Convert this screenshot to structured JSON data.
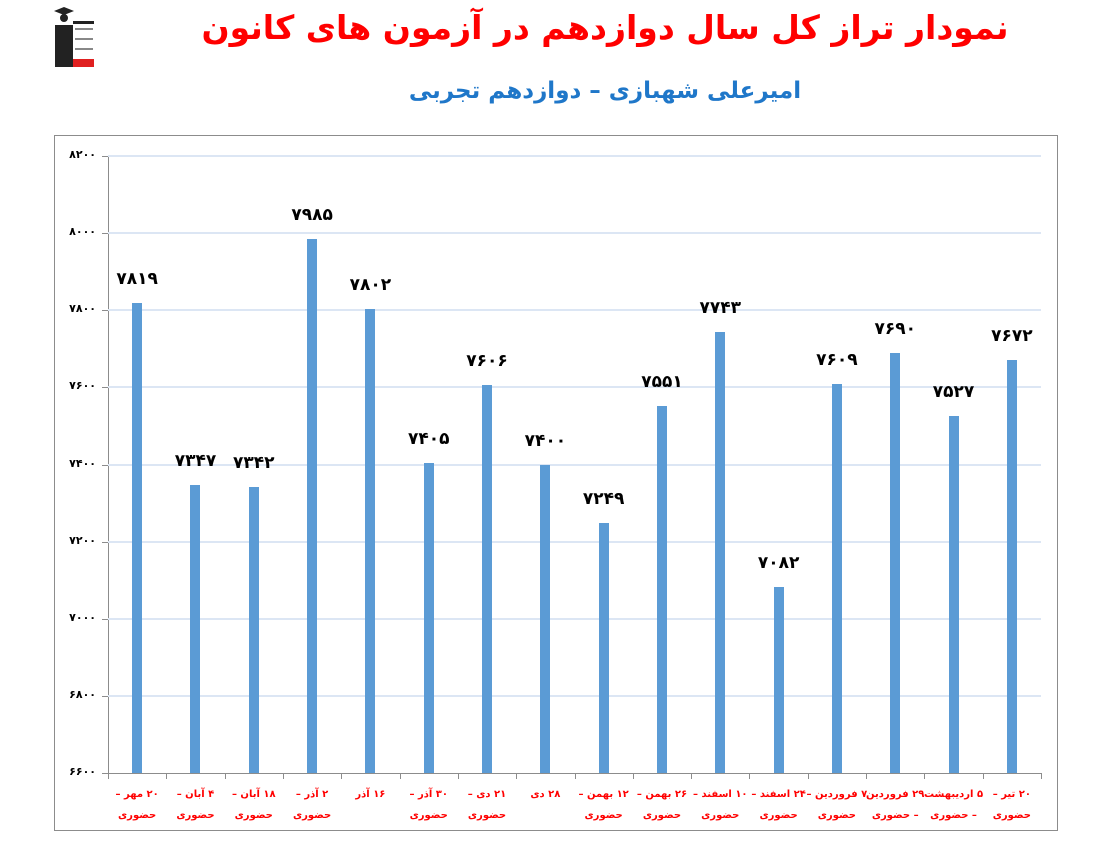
{
  "header": {
    "title": "نمودار تراز کل سال دوازدهم در آزمون های کانون",
    "subtitle": "امیرعلی شهبازی – دوازدهم تجربی",
    "logo": {
      "lines": [
        "کانون",
        "فرهنگی",
        "آموزش",
        "قلم‌چی"
      ]
    }
  },
  "chart_data": {
    "type": "bar",
    "title": "نمودار تراز کل سال دوازدهم در آزمون های کانون",
    "subtitle": "امیرعلی شهبازی – دوازدهم تجربی",
    "xlabel": "",
    "ylabel": "",
    "ylim": [
      6600,
      8200
    ],
    "yticks": [
      6600,
      6800,
      7000,
      7200,
      7400,
      7600,
      7800,
      8000,
      8200
    ],
    "ytick_labels": [
      "۶۶۰۰",
      "۶۸۰۰",
      "۷۰۰۰",
      "۷۲۰۰",
      "۷۴۰۰",
      "۷۶۰۰",
      "۷۸۰۰",
      "۸۰۰۰",
      "۸۲۰۰"
    ],
    "grid": true,
    "legend": null,
    "bar_color": "#5b9bd5",
    "label_color": "#ff0000",
    "categories": [
      "۲۰ مهر – حضوری",
      "۴ آبان – حضوری",
      "۱۸ آبان – حضوری",
      "۲ آذر – حضوری",
      "۱۶ آذر",
      "۳۰ آذر – حضوری",
      "۲۱ دی – حضوری",
      "۲۸ دی",
      "۱۲ بهمن – حضوری",
      "۲۶ بهمن – حضوری",
      "۱۰ اسفند – حضوری",
      "۲۴ اسفند – حضوری",
      "۷ فروردین – حضوری",
      "۲۹ فروردین – حضوری",
      "۵ اردیبهشت – حضوری",
      "۲۰ تیر – حضوری"
    ],
    "category_lines": [
      [
        "۲۰ مهر –",
        "حضوری"
      ],
      [
        "۴ آبان –",
        "حضوری"
      ],
      [
        "۱۸ آبان –",
        "حضوری"
      ],
      [
        "۲ آذر –",
        "حضوری"
      ],
      [
        "۱۶ آذر",
        ""
      ],
      [
        "۳۰ آذر –",
        "حضوری"
      ],
      [
        "۲۱ دی –",
        "حضوری"
      ],
      [
        "۲۸ دی",
        ""
      ],
      [
        "۱۲ بهمن –",
        "حضوری"
      ],
      [
        "۲۶ بهمن –",
        "حضوری"
      ],
      [
        "۱۰ اسفند –",
        "حضوری"
      ],
      [
        "۲۴ اسفند –",
        "حضوری"
      ],
      [
        "۷ فروردین –",
        "حضوری"
      ],
      [
        "۲۹ فروردین",
        "– حضوری"
      ],
      [
        "۵ اردیبهشت",
        "– حضوری"
      ],
      [
        "۲۰ تیر –",
        "حضوری"
      ]
    ],
    "values": [
      7819,
      7347,
      7342,
      7985,
      7802,
      7405,
      7606,
      7400,
      7249,
      7551,
      7743,
      7082,
      7609,
      7690,
      7527,
      7672
    ],
    "value_labels": [
      "۷۸۱۹",
      "۷۳۴۷",
      "۷۳۴۲",
      "۷۹۸۵",
      "۷۸۰۲",
      "۷۴۰۵",
      "۷۶۰۶",
      "۷۴۰۰",
      "۷۲۴۹",
      "۷۵۵۱",
      "۷۷۴۳",
      "۷۰۸۲",
      "۷۶۰۹",
      "۷۶۹۰",
      "۷۵۲۷",
      "۷۶۷۲"
    ]
  }
}
